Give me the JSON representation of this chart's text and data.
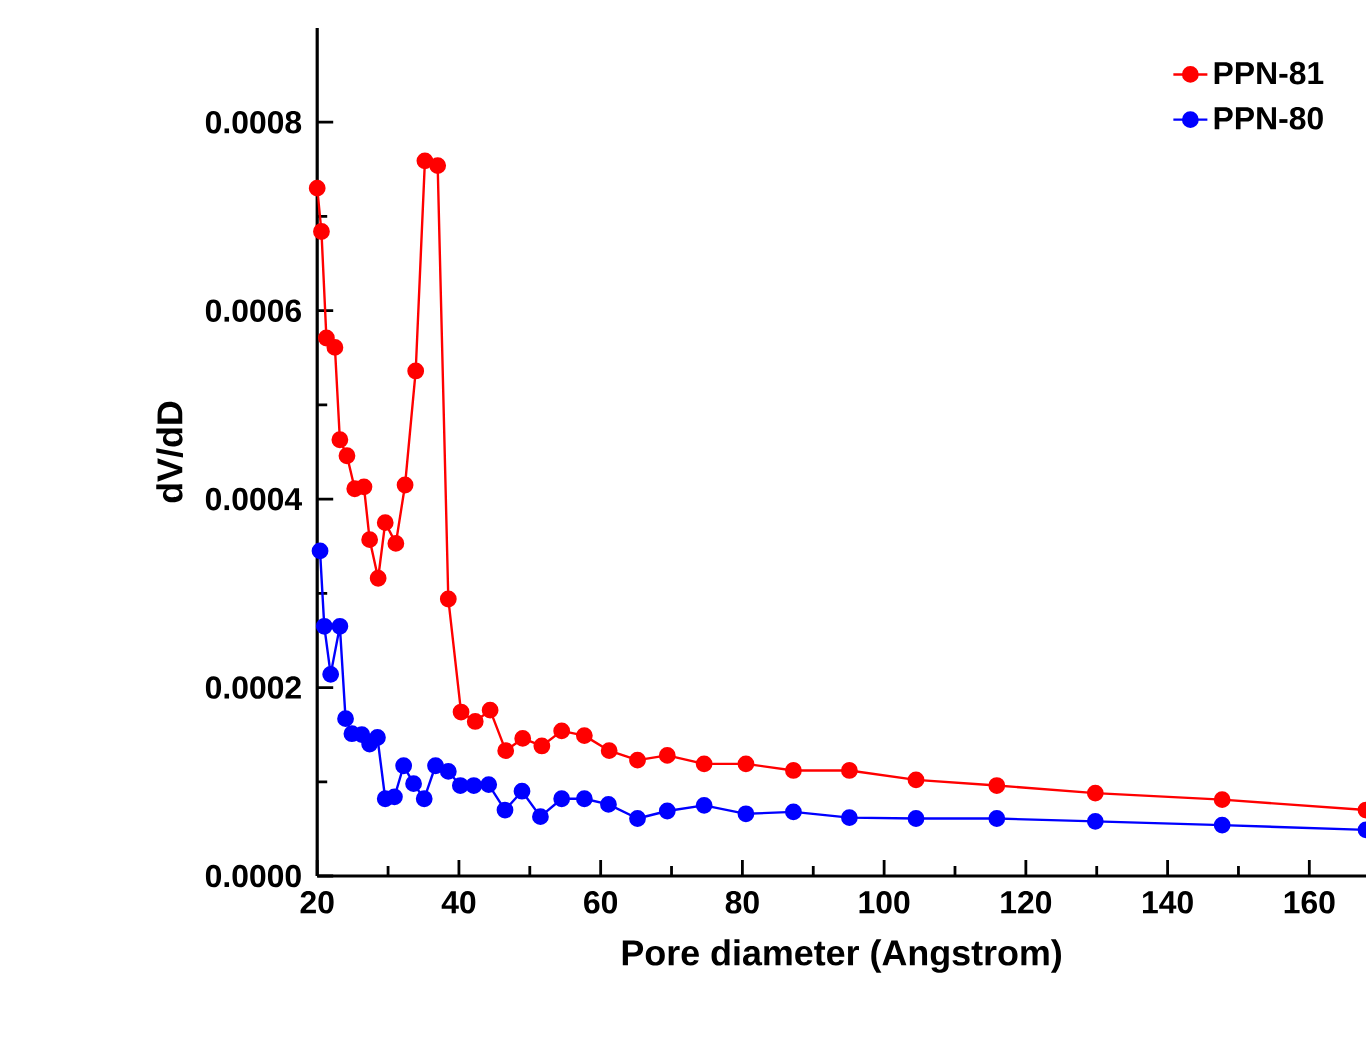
{
  "chart_data": {
    "type": "line",
    "xlabel": "Pore diameter (Angstrom)",
    "ylabel": "dV/dD",
    "xlim": [
      20,
      168
    ],
    "xticks": [
      20,
      40,
      60,
      80,
      100,
      120,
      140,
      160
    ],
    "ylim": [
      0,
      0.0009
    ],
    "yticks": [
      {
        "value": 0,
        "label": "0.0000"
      },
      {
        "value": 0.0002,
        "label": "0.0002"
      },
      {
        "value": 0.0004,
        "label": "0.0004"
      },
      {
        "value": 0.0006,
        "label": "0.0006"
      },
      {
        "value": 0.0008,
        "label": "0.0008"
      }
    ],
    "legend": "top right",
    "marker": "circle",
    "line_style": "solid",
    "grid": false,
    "series": [
      {
        "name": "PPN-81",
        "color": "#ff0000",
        "x": [
          20,
          20.6,
          21.3,
          22.5,
          23.2,
          24.2,
          25.3,
          26.6,
          27.4,
          28.6,
          29.6,
          31.1,
          32.4,
          33.9,
          35.2,
          37.0,
          38.5,
          40.3,
          42.3,
          44.4,
          46.6,
          49.0,
          51.7,
          54.5,
          57.7,
          61.2,
          65.2,
          69.4,
          74.6,
          80.5,
          87.2,
          95.1,
          104.5,
          115.9,
          129.8,
          147.7,
          168
        ],
        "values": [
          0.00073,
          0.000684,
          0.000571,
          0.000561,
          0.000463,
          0.000446,
          0.000411,
          0.000413,
          0.000357,
          0.000316,
          0.000375,
          0.000353,
          0.000415,
          0.000536,
          0.000759,
          0.000754,
          0.000294,
          0.000174,
          0.000164,
          0.000176,
          0.000133,
          0.000146,
          0.000138,
          0.000154,
          0.000149,
          0.000133,
          0.000123,
          0.000128,
          0.000119,
          0.000119,
          0.000112,
          0.000112,
          0.000102,
          9.6e-05,
          8.8e-05,
          8.1e-05,
          7e-05
        ]
      },
      {
        "name": "PPN-80",
        "color": "#0000ff",
        "x": [
          20.4,
          21.0,
          21.9,
          23.2,
          24.0,
          24.9,
          26.3,
          27.4,
          28.5,
          29.6,
          30.9,
          32.2,
          33.6,
          35.1,
          36.7,
          38.5,
          40.2,
          42.1,
          44.2,
          46.5,
          48.9,
          51.5,
          54.5,
          57.7,
          61.1,
          65.2,
          69.4,
          74.6,
          80.5,
          87.2,
          95.1,
          104.5,
          115.9,
          129.8,
          147.7,
          168
        ],
        "values": [
          0.000345,
          0.000265,
          0.000214,
          0.000265,
          0.000167,
          0.000151,
          0.00015,
          0.00014,
          0.000147,
          8.2e-05,
          8.4e-05,
          0.000117,
          9.8e-05,
          8.2e-05,
          0.000117,
          0.000111,
          9.6e-05,
          9.6e-05,
          9.7e-05,
          7e-05,
          9e-05,
          6.3e-05,
          8.2e-05,
          8.2e-05,
          7.6e-05,
          6.1e-05,
          6.9e-05,
          7.5e-05,
          6.6e-05,
          6.8e-05,
          6.2e-05,
          6.1e-05,
          6.1e-05,
          5.8e-05,
          5.4e-05,
          4.9e-05
        ]
      }
    ]
  }
}
